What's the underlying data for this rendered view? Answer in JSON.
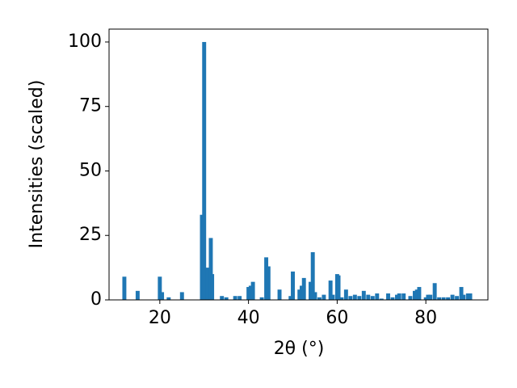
{
  "chart_data": {
    "type": "bar",
    "xlabel": "2θ (°)",
    "ylabel": "Intensities (scaled)",
    "color": "#1f77b4",
    "x": [
      12,
      15,
      20,
      20.5,
      22,
      25,
      29.5,
      30,
      30.8,
      31.5,
      31.8,
      34,
      35,
      37,
      38,
      40,
      40.5,
      41,
      43,
      44,
      44.5,
      47,
      49.5,
      50,
      51.5,
      52,
      52.5,
      54,
      54.5,
      55,
      56,
      57,
      58.5,
      59,
      60,
      60.3,
      61,
      62,
      63,
      64,
      65,
      66,
      67,
      68,
      69,
      70,
      71.5,
      72.5,
      73.5,
      74,
      75,
      76.5,
      77.5,
      78,
      78.5,
      80,
      80.5,
      81,
      82,
      83,
      84,
      85,
      86,
      87,
      88,
      88.5,
      89.5,
      90
    ],
    "values": [
      9,
      3.5,
      9,
      3,
      1,
      3,
      33,
      100,
      12.5,
      24,
      10,
      1.5,
      1,
      1.5,
      1.5,
      5,
      5.5,
      7,
      1,
      16.5,
      13,
      4,
      1.5,
      11,
      4,
      5.5,
      8.5,
      7,
      18.5,
      3,
      1,
      2,
      7.5,
      2,
      10,
      9.5,
      1,
      4,
      1.5,
      2,
      1.5,
      3.5,
      2,
      1.5,
      2.5,
      0.5,
      2.5,
      1,
      2,
      2.5,
      2.5,
      1.5,
      3.5,
      4,
      5,
      1,
      2,
      2,
      6.5,
      1,
      1,
      1,
      2,
      1.5,
      5,
      2,
      2.5,
      2.5
    ],
    "xlim": [
      8.55,
      94
    ],
    "ylim": [
      0,
      105
    ],
    "xticks": [
      20,
      40,
      60,
      80
    ],
    "yticks": [
      0,
      25,
      50,
      75,
      100
    ]
  }
}
